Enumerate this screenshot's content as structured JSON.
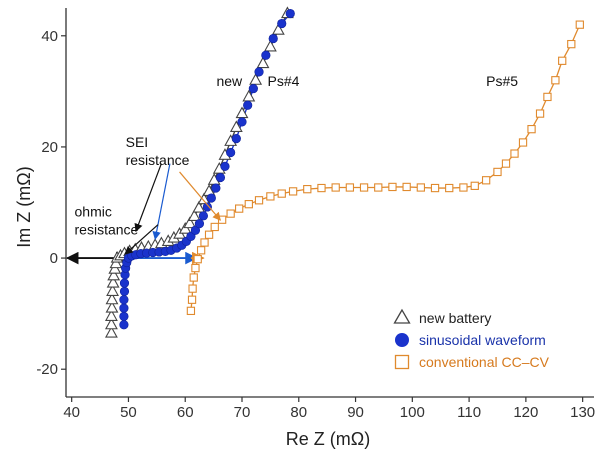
{
  "chart_data": {
    "type": "scatter",
    "xlabel": "Re Z (mΩ)",
    "ylabel": "Im Z (mΩ)",
    "xlim": [
      39,
      132
    ],
    "ylim": [
      -25,
      45
    ],
    "xticks": [
      "40",
      "50",
      "60",
      "70",
      "80",
      "90",
      "100",
      "110",
      "120",
      "130"
    ],
    "yticks": [
      "40",
      "20",
      "0",
      "-20"
    ],
    "grid": false,
    "legend_position": "bottom-right",
    "series": [
      {
        "name": "new battery",
        "marker": "triangle",
        "color": "#444444",
        "points": [
          [
            47.0,
            -13.5
          ],
          [
            47.0,
            -12.0
          ],
          [
            47.0,
            -10.5
          ],
          [
            47.1,
            -9.0
          ],
          [
            47.1,
            -7.5
          ],
          [
            47.2,
            -6.0
          ],
          [
            47.3,
            -4.5
          ],
          [
            47.4,
            -3.2
          ],
          [
            47.6,
            -2.0
          ],
          [
            47.8,
            -1.0
          ],
          [
            48.0,
            0.0
          ],
          [
            48.6,
            0.4
          ],
          [
            49.3,
            0.8
          ],
          [
            50.2,
            1.2
          ],
          [
            51.2,
            1.5
          ],
          [
            52.3,
            1.8
          ],
          [
            53.5,
            2.0
          ],
          [
            54.7,
            2.3
          ],
          [
            55.8,
            2.6
          ],
          [
            57.0,
            3.0
          ],
          [
            58.0,
            3.6
          ],
          [
            59.0,
            4.3
          ],
          [
            60.0,
            5.2
          ],
          [
            60.8,
            6.2
          ],
          [
            61.6,
            7.5
          ],
          [
            62.4,
            9.0
          ],
          [
            63.3,
            10.5
          ],
          [
            64.2,
            12.0
          ],
          [
            65.1,
            14.0
          ],
          [
            66.0,
            16.0
          ],
          [
            67.0,
            18.5
          ],
          [
            68.0,
            21.0
          ],
          [
            69.0,
            23.5
          ],
          [
            70.0,
            26.0
          ],
          [
            71.2,
            29.0
          ],
          [
            72.4,
            32.0
          ],
          [
            73.7,
            35.0
          ],
          [
            75.0,
            38.0
          ],
          [
            76.4,
            41.0
          ],
          [
            78.0,
            44.0
          ]
        ]
      },
      {
        "name": "sinusoidal waveform",
        "marker": "circle",
        "color": "#1a33cc",
        "points": [
          [
            49.2,
            -12.0
          ],
          [
            49.2,
            -10.5
          ],
          [
            49.2,
            -9.0
          ],
          [
            49.2,
            -7.5
          ],
          [
            49.3,
            -6.0
          ],
          [
            49.3,
            -4.5
          ],
          [
            49.4,
            -3.0
          ],
          [
            49.5,
            -1.8
          ],
          [
            49.7,
            -0.8
          ],
          [
            50.0,
            0.0
          ],
          [
            50.6,
            0.4
          ],
          [
            51.3,
            0.6
          ],
          [
            52.2,
            0.8
          ],
          [
            53.2,
            0.9
          ],
          [
            54.3,
            1.0
          ],
          [
            55.4,
            1.1
          ],
          [
            56.5,
            1.2
          ],
          [
            57.5,
            1.4
          ],
          [
            58.5,
            1.8
          ],
          [
            59.4,
            2.3
          ],
          [
            60.2,
            3.0
          ],
          [
            61.0,
            3.9
          ],
          [
            61.8,
            5.0
          ],
          [
            62.5,
            6.2
          ],
          [
            63.2,
            7.6
          ],
          [
            63.9,
            9.2
          ],
          [
            64.6,
            10.8
          ],
          [
            65.4,
            12.6
          ],
          [
            66.2,
            14.5
          ],
          [
            67.0,
            16.5
          ],
          [
            68.0,
            19.0
          ],
          [
            69.0,
            21.5
          ],
          [
            70.0,
            24.5
          ],
          [
            71.0,
            27.5
          ],
          [
            72.0,
            30.5
          ],
          [
            73.0,
            33.5
          ],
          [
            74.2,
            36.5
          ],
          [
            75.5,
            39.5
          ],
          [
            77.0,
            42.2
          ],
          [
            78.5,
            44.0
          ]
        ]
      },
      {
        "name": "conventional CC–CV",
        "marker": "square",
        "color": "#e08a2e",
        "points": [
          [
            61.0,
            -9.5
          ],
          [
            61.2,
            -7.5
          ],
          [
            61.3,
            -5.5
          ],
          [
            61.5,
            -3.5
          ],
          [
            61.8,
            -1.8
          ],
          [
            62.2,
            -0.2
          ],
          [
            62.8,
            1.4
          ],
          [
            63.4,
            2.8
          ],
          [
            64.2,
            4.2
          ],
          [
            65.2,
            5.6
          ],
          [
            66.5,
            6.9
          ],
          [
            68.0,
            8.0
          ],
          [
            69.5,
            8.9
          ],
          [
            71.2,
            9.7
          ],
          [
            73.0,
            10.4
          ],
          [
            75.0,
            11.1
          ],
          [
            77.0,
            11.6
          ],
          [
            79.0,
            12.0
          ],
          [
            81.5,
            12.4
          ],
          [
            84.0,
            12.6
          ],
          [
            86.5,
            12.7
          ],
          [
            89.0,
            12.7
          ],
          [
            91.5,
            12.7
          ],
          [
            94.0,
            12.7
          ],
          [
            96.5,
            12.8
          ],
          [
            99.0,
            12.8
          ],
          [
            101.5,
            12.7
          ],
          [
            104.0,
            12.6
          ],
          [
            106.5,
            12.6
          ],
          [
            109.0,
            12.7
          ],
          [
            111.0,
            13.0
          ],
          [
            113.0,
            14.0
          ],
          [
            115.0,
            15.5
          ],
          [
            116.5,
            17.0
          ],
          [
            118.0,
            18.8
          ],
          [
            119.5,
            20.8
          ],
          [
            121.0,
            23.2
          ],
          [
            122.5,
            26.0
          ],
          [
            123.8,
            29.0
          ],
          [
            125.2,
            32.0
          ],
          [
            126.4,
            35.5
          ],
          [
            128.0,
            38.5
          ],
          [
            129.5,
            42.0
          ]
        ]
      }
    ],
    "annotations": [
      {
        "text": "new",
        "color": "#111111",
        "x": 65.5,
        "y": 31.0
      },
      {
        "text": "Ps#4",
        "color": "#1a33aa",
        "x": 74.5,
        "y": 31.0
      },
      {
        "text": "Ps#5",
        "color": "#e08a2e",
        "x": 113.0,
        "y": 31.0
      },
      {
        "lines": [
          "SEI",
          "resistance"
        ],
        "color": "#111111",
        "x": 49.5,
        "y": 20.0
      },
      {
        "lines": [
          "ohmic",
          "resistance"
        ],
        "color": "#111111",
        "x": 40.5,
        "y": 7.5
      }
    ]
  },
  "legend": {
    "items": [
      {
        "label": "new battery",
        "marker": "triangle",
        "color": "#444444",
        "text_color": "#222222"
      },
      {
        "label": "sinusoidal waveform",
        "marker": "circle",
        "color": "#1a33cc",
        "text_color": "#1a33aa"
      },
      {
        "label": "conventional CC–CV",
        "marker": "square",
        "color": "#e08a2e",
        "text_color": "#d67a1e"
      }
    ]
  }
}
